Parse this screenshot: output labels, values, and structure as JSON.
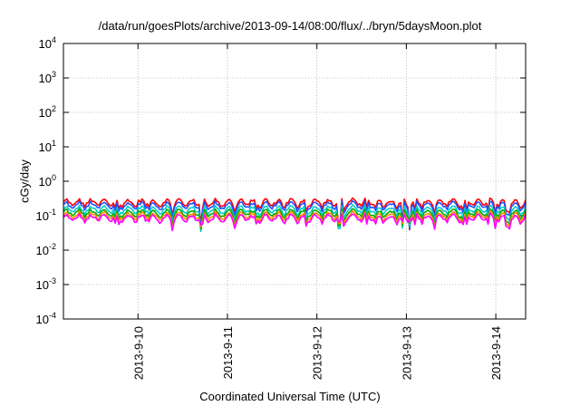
{
  "chart_data": {
    "type": "line",
    "title": "/data/run/goesPlots/archive/2013-09-14/08:00/flux/../bryn/5daysMoon.plot",
    "xlabel": "Coordinated Universal Time (UTC)",
    "ylabel": "cGy/day",
    "yscale": "log",
    "ylim": [
      0.0001,
      10000
    ],
    "xlim": [
      "2013-09-09 04:00",
      "2013-09-14 08:00"
    ],
    "grid": true,
    "xticks": [
      "2013-9-10",
      "2013-9-11",
      "2013-9-12",
      "2013-9-13",
      "2013-9-14"
    ],
    "yticks": [
      {
        "value": 0.0001,
        "base": "10",
        "exp": "-4"
      },
      {
        "value": 0.001,
        "base": "10",
        "exp": "-3"
      },
      {
        "value": 0.01,
        "base": "10",
        "exp": "-2"
      },
      {
        "value": 0.1,
        "base": "10",
        "exp": "-1"
      },
      {
        "value": 1,
        "base": "10",
        "exp": "0"
      },
      {
        "value": 10,
        "base": "10",
        "exp": "1"
      },
      {
        "value": 100,
        "base": "10",
        "exp": "2"
      },
      {
        "value": 1000,
        "base": "10",
        "exp": "3"
      },
      {
        "value": 10000,
        "base": "10",
        "exp": "4"
      }
    ],
    "series": [
      {
        "color": "#ff0000",
        "baseline": 0.24
      },
      {
        "color": "#2050ff",
        "baseline": 0.2
      },
      {
        "color": "#00cccc",
        "baseline": 0.15
      },
      {
        "color": "#00aa00",
        "baseline": 0.12
      },
      {
        "color": "#ff8800",
        "baseline": 0.1
      },
      {
        "color": "#ff00ff",
        "baseline": 0.085
      }
    ],
    "dips": [
      {
        "t": "2013-09-10 17:00",
        "min": 0.02
      },
      {
        "t": "2013-09-12 06:00",
        "min": 0.025
      },
      {
        "t": "2013-09-12 23:00",
        "min": 0.025
      },
      {
        "t": "2013-09-13 01:00",
        "min": 0.03
      }
    ]
  }
}
